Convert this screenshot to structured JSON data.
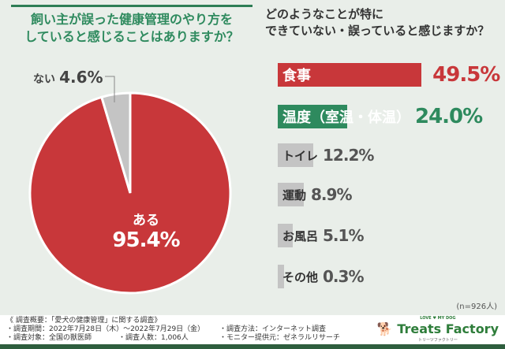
{
  "left": {
    "title_line1": "飼い主が誤った健康管理のやり方を",
    "title_line2": "していると感じることはありますか？"
  },
  "right": {
    "title_line1": "どのようなことが特に",
    "title_line2": "できていない・誤っていると感じますか？",
    "sample": "(n=926人)"
  },
  "chart_data": [
    {
      "type": "pie",
      "slices": [
        {
          "label": "ある",
          "value": 95.4,
          "display": "95.4%",
          "color": "#c8373a"
        },
        {
          "label": "ない",
          "value": 4.6,
          "display": "4.6%",
          "color": "#c4c4c4"
        }
      ]
    },
    {
      "type": "bar",
      "orientation": "horizontal",
      "categories": [
        "食事",
        "温度（室温・体温）",
        "トイレ",
        "運動",
        "お風呂",
        "その他"
      ],
      "values": [
        49.5,
        24.0,
        12.2,
        8.9,
        5.1,
        0.3
      ],
      "display": [
        "49.5%",
        "24.0%",
        "12.2%",
        "8.9%",
        "5.1%",
        "0.3%"
      ],
      "colors": [
        "#c8373a",
        "#2e8a5e",
        "#c4c4c4",
        "#c4c4c4",
        "#c4c4c4",
        "#c4c4c4"
      ],
      "value_colors": [
        "#c8373a",
        "#2e8a5e",
        "#555555",
        "#555555",
        "#555555",
        "#555555"
      ]
    }
  ],
  "footer": {
    "l1": "《 調査概要：「愛犬の健康管理」に関する調査》",
    "l2": "・調査期間：2022年7月28日（木）〜2022年7月29日（金）",
    "l3": "・調査対象：全国の獣医師",
    "l4": "・調査人数：1,006人",
    "l5": "・調査方法：インターネット調査",
    "l6": "・モニター提供元：ゼネラルリサーチ",
    "logo": "Treats Factory",
    "logo_top": "LOVE ♥ MY DOG",
    "logo_sub": "トリーツファクトリー"
  }
}
